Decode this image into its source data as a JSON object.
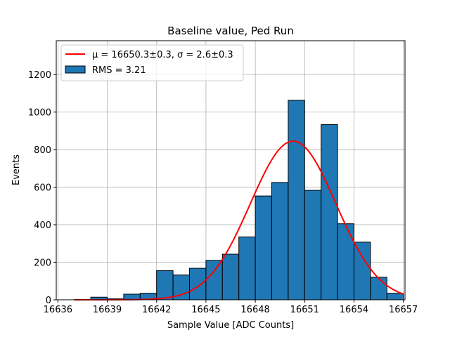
{
  "chart_data": {
    "type": "bar",
    "title": "Baseline value, Ped Run",
    "xlabel": "Sample Value [ADC Counts]",
    "ylabel": "Events",
    "xlim": [
      16635.9,
      16657.1
    ],
    "ylim": [
      0,
      1380
    ],
    "grid": true,
    "legend_position": "top-left",
    "x_ticks": [
      16636,
      16639,
      16642,
      16645,
      16648,
      16651,
      16654,
      16657
    ],
    "y_ticks": [
      0,
      200,
      400,
      600,
      800,
      1000,
      1200
    ],
    "histogram": {
      "name": "RMS = 3.21",
      "bin_width": 1,
      "bin_starts": [
        16637,
        16638,
        16639,
        16640,
        16641,
        16642,
        16643,
        16644,
        16645,
        16646,
        16647,
        16648,
        16649,
        16650,
        16651,
        16652,
        16653,
        16654,
        16655,
        16656
      ],
      "values": [
        2,
        14,
        5,
        30,
        35,
        155,
        132,
        168,
        210,
        243,
        335,
        553,
        625,
        1063,
        583,
        933,
        405,
        307,
        120,
        35
      ],
      "color": "#1f77b4"
    },
    "fit": {
      "name": "μ = 16650.3±0.3, σ = 2.6±0.3",
      "type": "gaussian",
      "amplitude": 845,
      "mean": 16650.3,
      "sigma": 2.6,
      "x_range": [
        16637,
        16657
      ],
      "color": "#ff0000"
    }
  }
}
